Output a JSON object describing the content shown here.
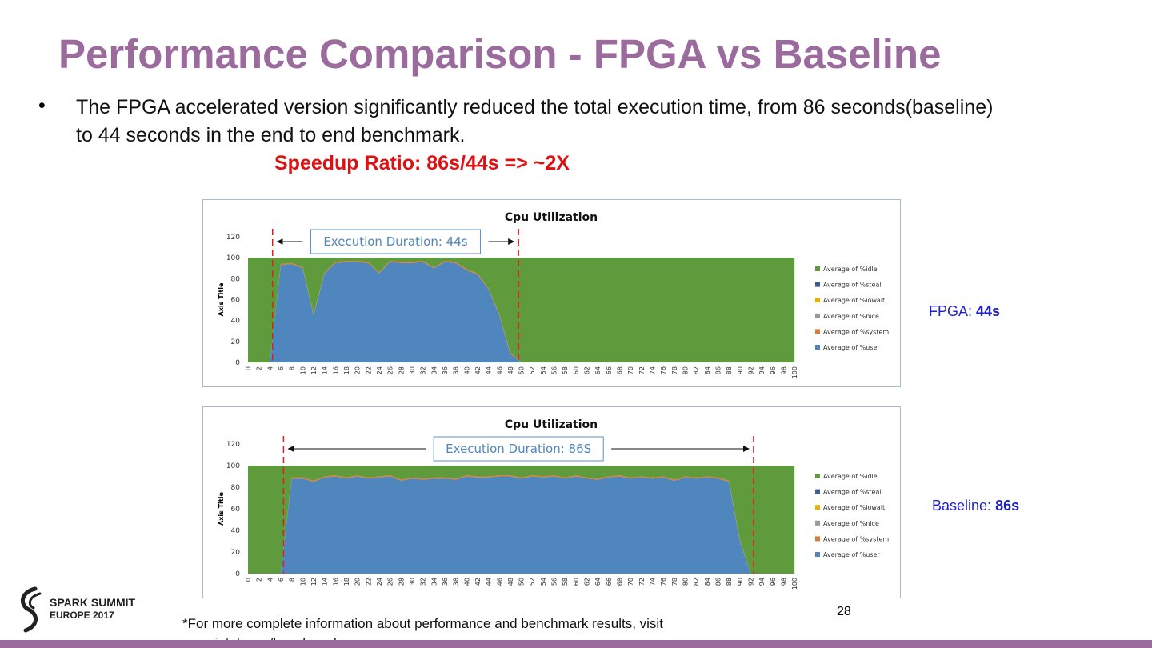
{
  "title": "Performance Comparison - FPGA vs Baseline",
  "bullet": "The FPGA accelerated version significantly reduced the total execution time, from 86 seconds(baseline) to 44 seconds in the end to end benchmark.",
  "speedup": "Speedup Ratio: 86s/44s => ~2X",
  "chart_data": [
    {
      "type": "area",
      "title": "Cpu Utilization",
      "y_axis_label": "Axis Title",
      "annotation": {
        "text": "Execution Duration: 44s",
        "x_range": [
          4.5,
          49.5
        ]
      },
      "x": [
        0,
        2,
        4,
        6,
        8,
        10,
        12,
        14,
        16,
        18,
        20,
        22,
        24,
        26,
        28,
        30,
        32,
        34,
        36,
        38,
        40,
        42,
        44,
        46,
        48,
        50,
        52,
        54,
        56,
        58,
        60,
        62,
        64,
        66,
        68,
        70,
        72,
        74,
        76,
        78,
        80,
        82,
        84,
        86,
        88,
        90,
        92,
        94,
        96,
        98,
        100
      ],
      "xticks": [
        0,
        2,
        4,
        6,
        8,
        10,
        12,
        14,
        16,
        18,
        20,
        22,
        24,
        26,
        28,
        30,
        32,
        34,
        36,
        38,
        40,
        42,
        44,
        46,
        48,
        50,
        52,
        54,
        56,
        58,
        60,
        62,
        64,
        66,
        68,
        70,
        72,
        74,
        76,
        78,
        80,
        82,
        84,
        86,
        88,
        90,
        92,
        94,
        96,
        98,
        100
      ],
      "xlim": [
        0,
        101
      ],
      "ylim": [
        0,
        120
      ],
      "yticks": [
        0,
        20,
        40,
        60,
        80,
        100,
        120
      ],
      "grid": false,
      "series": [
        {
          "name": "Average of %idle",
          "color": "#5f9a3c",
          "values": [
            100,
            100,
            100,
            6,
            5,
            9,
            54,
            14,
            4,
            3,
            3,
            4,
            14,
            3,
            4,
            4,
            3,
            9,
            3,
            4,
            11,
            15,
            29,
            54,
            91,
            100,
            100,
            100,
            100,
            100,
            100,
            100,
            100,
            100,
            100,
            100,
            100,
            100,
            100,
            100,
            100,
            100,
            100,
            100,
            100,
            100,
            100,
            100,
            100,
            100,
            100
          ]
        },
        {
          "name": "Average of %steal",
          "color": "#3a5f9a",
          "values": [
            0,
            0,
            0,
            0,
            0,
            0,
            0,
            0,
            0,
            0,
            0,
            0,
            0,
            0,
            0,
            0,
            0,
            0,
            0,
            0,
            0,
            0,
            0,
            0,
            0,
            0,
            0,
            0,
            0,
            0,
            0,
            0,
            0,
            0,
            0,
            0,
            0,
            0,
            0,
            0,
            0,
            0,
            0,
            0,
            0,
            0,
            0,
            0,
            0,
            0,
            0
          ]
        },
        {
          "name": "Average of %iowait",
          "color": "#e8b300",
          "values": [
            0,
            0,
            0,
            0,
            0,
            0,
            0,
            0,
            0,
            0,
            0,
            0,
            0,
            0,
            0,
            0,
            0,
            0,
            0,
            0,
            0,
            0,
            0,
            0,
            0,
            0,
            0,
            0,
            0,
            0,
            0,
            0,
            0,
            0,
            0,
            0,
            0,
            0,
            0,
            0,
            0,
            0,
            0,
            0,
            0,
            0,
            0,
            0,
            0,
            0,
            0
          ]
        },
        {
          "name": "Average of %nice",
          "color": "#999999",
          "values": [
            0,
            0,
            0,
            0,
            0,
            0,
            0,
            0,
            0,
            0,
            0,
            0,
            0,
            0,
            0,
            0,
            0,
            0,
            0,
            0,
            0,
            0,
            0,
            0,
            0,
            0,
            0,
            0,
            0,
            0,
            0,
            0,
            0,
            0,
            0,
            0,
            0,
            0,
            0,
            0,
            0,
            0,
            0,
            0,
            0,
            0,
            0,
            0,
            0,
            0,
            0
          ]
        },
        {
          "name": "Average of %system",
          "color": "#e07a30",
          "values": [
            0,
            0,
            0,
            1,
            1,
            1,
            1,
            1,
            1,
            1,
            1,
            1,
            1,
            1,
            1,
            1,
            1,
            1,
            1,
            1,
            1,
            1,
            1,
            1,
            1,
            0,
            0,
            0,
            0,
            0,
            0,
            0,
            0,
            0,
            0,
            0,
            0,
            0,
            0,
            0,
            0,
            0,
            0,
            0,
            0,
            0,
            0,
            0,
            0,
            0,
            0
          ]
        },
        {
          "name": "Average of %user",
          "color": "#4f86bd",
          "values": [
            0,
            0,
            0,
            93,
            94,
            90,
            45,
            85,
            95,
            96,
            96,
            95,
            85,
            96,
            95,
            95,
            96,
            90,
            96,
            95,
            88,
            84,
            70,
            45,
            8,
            0,
            0,
            0,
            0,
            0,
            0,
            0,
            0,
            0,
            0,
            0,
            0,
            0,
            0,
            0,
            0,
            0,
            0,
            0,
            0,
            0,
            0,
            0,
            0,
            0,
            0
          ]
        }
      ]
    },
    {
      "type": "area",
      "title": "Cpu Utilization",
      "y_axis_label": "Axis Title",
      "annotation": {
        "text": "Execution Duration: 86S",
        "x_range": [
          6.5,
          92.5
        ]
      },
      "x": [
        0,
        2,
        4,
        6,
        8,
        10,
        12,
        14,
        16,
        18,
        20,
        22,
        24,
        26,
        28,
        30,
        32,
        34,
        36,
        38,
        40,
        42,
        44,
        46,
        48,
        50,
        52,
        54,
        56,
        58,
        60,
        62,
        64,
        66,
        68,
        70,
        72,
        74,
        76,
        78,
        80,
        82,
        84,
        86,
        88,
        90,
        92,
        94,
        96,
        98,
        100
      ],
      "xticks": [
        0,
        2,
        4,
        6,
        8,
        10,
        12,
        14,
        16,
        18,
        20,
        22,
        24,
        26,
        28,
        30,
        32,
        34,
        36,
        38,
        40,
        42,
        44,
        46,
        48,
        50,
        52,
        54,
        56,
        58,
        60,
        62,
        64,
        66,
        68,
        70,
        72,
        74,
        76,
        78,
        80,
        82,
        84,
        86,
        88,
        90,
        92,
        94,
        96,
        98,
        100
      ],
      "xlim": [
        0,
        101
      ],
      "ylim": [
        0,
        120
      ],
      "yticks": [
        0,
        20,
        40,
        60,
        80,
        100,
        120
      ],
      "grid": false,
      "series": [
        {
          "name": "Average of %idle",
          "color": "#5f9a3c",
          "values": [
            100,
            100,
            100,
            100,
            11,
            11,
            14,
            10,
            9,
            11,
            9,
            11,
            10,
            9,
            13,
            11,
            12,
            11,
            11,
            12,
            9,
            10,
            10,
            9,
            9,
            11,
            9,
            10,
            9,
            11,
            9,
            11,
            12,
            10,
            9,
            11,
            10,
            11,
            10,
            13,
            10,
            11,
            10,
            11,
            14,
            69,
            100,
            100,
            100,
            100,
            100
          ]
        },
        {
          "name": "Average of %steal",
          "color": "#3a5f9a",
          "values": [
            0,
            0,
            0,
            0,
            0,
            0,
            0,
            0,
            0,
            0,
            0,
            0,
            0,
            0,
            0,
            0,
            0,
            0,
            0,
            0,
            0,
            0,
            0,
            0,
            0,
            0,
            0,
            0,
            0,
            0,
            0,
            0,
            0,
            0,
            0,
            0,
            0,
            0,
            0,
            0,
            0,
            0,
            0,
            0,
            0,
            0,
            0,
            0,
            0,
            0,
            0
          ]
        },
        {
          "name": "Average of %iowait",
          "color": "#e8b300",
          "values": [
            0,
            0,
            0,
            0,
            0,
            0,
            0,
            0,
            0,
            0,
            0,
            0,
            0,
            0,
            0,
            0,
            0,
            0,
            0,
            0,
            0,
            0,
            0,
            0,
            0,
            0,
            0,
            0,
            0,
            0,
            0,
            0,
            0,
            0,
            0,
            0,
            0,
            0,
            0,
            0,
            0,
            0,
            0,
            0,
            0,
            0,
            0,
            0,
            0,
            0,
            0
          ]
        },
        {
          "name": "Average of %nice",
          "color": "#999999",
          "values": [
            0,
            0,
            0,
            0,
            0,
            0,
            0,
            0,
            0,
            0,
            0,
            0,
            0,
            0,
            0,
            0,
            0,
            0,
            0,
            0,
            0,
            0,
            0,
            0,
            0,
            0,
            0,
            0,
            0,
            0,
            0,
            0,
            0,
            0,
            0,
            0,
            0,
            0,
            0,
            0,
            0,
            0,
            0,
            0,
            0,
            0,
            0,
            0,
            0,
            0,
            0
          ]
        },
        {
          "name": "Average of %system",
          "color": "#e07a30",
          "values": [
            0,
            0,
            0,
            0,
            1,
            1,
            1,
            1,
            1,
            1,
            1,
            1,
            1,
            1,
            1,
            1,
            1,
            1,
            1,
            1,
            1,
            1,
            1,
            1,
            1,
            1,
            1,
            1,
            1,
            1,
            1,
            1,
            1,
            1,
            1,
            1,
            1,
            1,
            1,
            1,
            1,
            1,
            1,
            1,
            1,
            1,
            0,
            0,
            0,
            0,
            0
          ]
        },
        {
          "name": "Average of %user",
          "color": "#4f86bd",
          "values": [
            0,
            0,
            0,
            0,
            88,
            88,
            85,
            89,
            90,
            88,
            90,
            88,
            89,
            90,
            86,
            88,
            87,
            88,
            88,
            87,
            90,
            89,
            89,
            90,
            90,
            88,
            90,
            89,
            90,
            88,
            90,
            88,
            87,
            89,
            90,
            88,
            89,
            88,
            89,
            86,
            89,
            88,
            89,
            88,
            85,
            30,
            0,
            0,
            0,
            0,
            0
          ]
        }
      ]
    }
  ],
  "side_labels": [
    {
      "name": "FPGA:",
      "value": "44s"
    },
    {
      "name": "Baseline:",
      "value": "86s"
    }
  ],
  "page_number": "28",
  "footnote": "*For more complete information about performance and benchmark results, visit www.intel.com/benchmarks.",
  "logo": {
    "line1": "SPARK SUMMIT",
    "line2": "EUROPE 2017"
  }
}
